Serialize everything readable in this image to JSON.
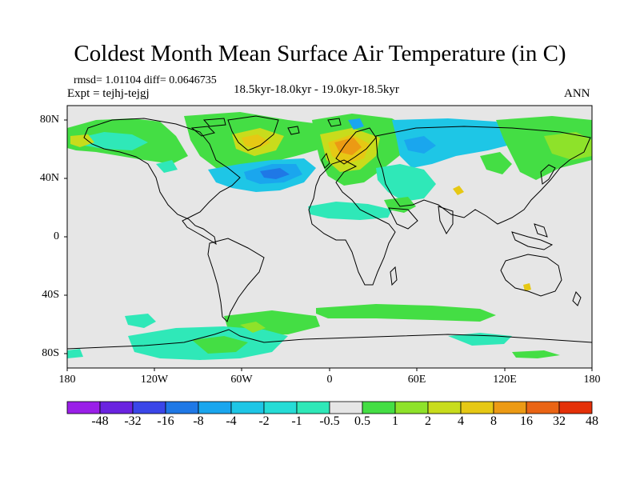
{
  "title": "Coldest Month Mean Surface Air Temperature (in C)",
  "stats": "rmsd= 1.01104 diff= 0.0646735",
  "experiment": "Expt = tejhj-tejgj",
  "period": "18.5kyr-18.0kyr - 19.0kyr-18.5kyr",
  "season": "ANN",
  "lat_labels": [
    "80N",
    "40N",
    "0",
    "40S",
    "80S"
  ],
  "lon_labels": [
    "180",
    "120W",
    "60W",
    "0",
    "60E",
    "120E",
    "180"
  ],
  "colorbar": {
    "labels": [
      "-48",
      "-32",
      "-16",
      "-8",
      "-4",
      "-2",
      "-1",
      "-0.5",
      "0.5",
      "1",
      "2",
      "4",
      "8",
      "16",
      "32",
      "48"
    ],
    "colors": [
      "#9a1fe8",
      "#6a23e0",
      "#3a46e8",
      "#1f78e6",
      "#1aa6ee",
      "#1ec6e6",
      "#26dcd6",
      "#2fe8b8",
      "#e6e6e6",
      "#44de44",
      "#8ee22a",
      "#c8dc1c",
      "#e6c814",
      "#ec9a14",
      "#ea6414",
      "#e43008"
    ]
  },
  "colors": {
    "land_bg": "#e6e6e6",
    "coast": "#000000"
  }
}
